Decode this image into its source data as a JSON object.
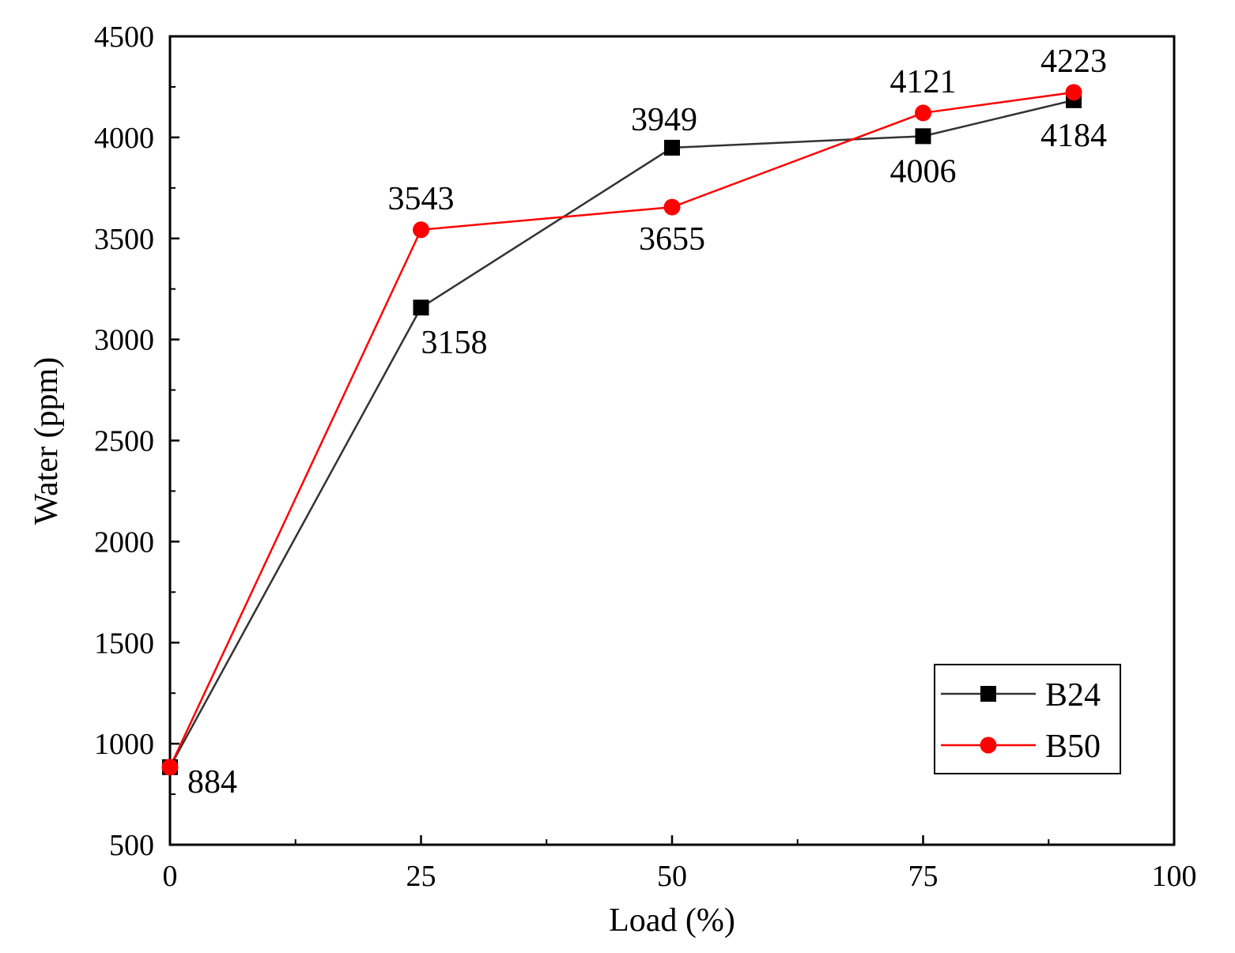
{
  "chart_data": {
    "type": "line",
    "xlabel": "Load (%)",
    "ylabel": "Water (ppm)",
    "xlim": [
      0,
      100
    ],
    "ylim": [
      500,
      4500
    ],
    "x_ticks": [
      0,
      25,
      50,
      75,
      100
    ],
    "y_ticks": [
      500,
      1000,
      1500,
      2000,
      2500,
      3000,
      3500,
      4000,
      4500
    ],
    "grid": false,
    "legend_position": "bottom-right",
    "series": [
      {
        "name": "B24",
        "color": "#000000",
        "marker": "square",
        "line_color": "#333333",
        "x": [
          0,
          25,
          50,
          75,
          90
        ],
        "y": [
          884,
          3158,
          3949,
          4006,
          4184
        ],
        "labels": [
          "884",
          "3158",
          "3949",
          "4006",
          "4184"
        ]
      },
      {
        "name": "B50",
        "color": "#ff0000",
        "marker": "circle",
        "line_color": "#ff0000",
        "x": [
          0,
          25,
          50,
          75,
          90
        ],
        "y": [
          884,
          3543,
          3655,
          4121,
          4223
        ],
        "labels": [
          "",
          "3543",
          "3655",
          "4121",
          "4223"
        ]
      }
    ]
  }
}
